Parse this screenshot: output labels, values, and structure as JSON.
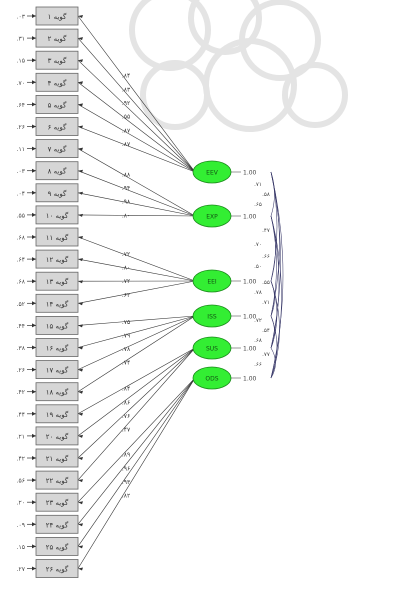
{
  "indicators": [
    {
      "label": "گویه ۱",
      "error": ".۰۳"
    },
    {
      "label": "گویه ۲",
      "error": ".۳۱"
    },
    {
      "label": "گویه ۳",
      "error": ".۱۵"
    },
    {
      "label": "گویه ۴",
      "error": ".۷۰"
    },
    {
      "label": "گویه ۵",
      "error": ".۶۴"
    },
    {
      "label": "گویه ۶",
      "error": ".۲۶"
    },
    {
      "label": "گویه ۷",
      "error": ".۱۱"
    },
    {
      "label": "گویه ۸",
      "error": ".۰۳"
    },
    {
      "label": "گویه ۹",
      "error": ".۰۴"
    },
    {
      "label": "گویه ۱۰",
      "error": ".۵۵"
    },
    {
      "label": "گویه ۱۱",
      "error": ".۶۸"
    },
    {
      "label": "گویه ۱۲",
      "error": ".۶۴"
    },
    {
      "label": "گویه ۱۳",
      "error": ".۶۸"
    },
    {
      "label": "گویه ۱۴",
      "error": ".۵۲"
    },
    {
      "label": "گویه ۱۵",
      "error": ".۴۴"
    },
    {
      "label": "گویه ۱۶",
      "error": ".۳۸"
    },
    {
      "label": "گویه ۱۷",
      "error": ".۲۶"
    },
    {
      "label": "گویه ۱۸",
      "error": ".۴۲"
    },
    {
      "label": "گویه ۱۹",
      "error": ".۴۴"
    },
    {
      "label": "گویه ۲۰",
      "error": ".۲۱"
    },
    {
      "label": "گویه ۲۱",
      "error": ".۴۲"
    },
    {
      "label": "گویه ۲۲",
      "error": ".۵۶"
    },
    {
      "label": "گویه ۲۳",
      "error": ".۲۰"
    },
    {
      "label": "گویه ۲۴",
      "error": ".۰۹"
    },
    {
      "label": "گویه ۲۵",
      "error": ".۱۵"
    },
    {
      "label": "گویه ۲۶",
      "error": ".۲۷"
    }
  ],
  "factors": [
    {
      "name": "EEV",
      "variance": "1.00",
      "items": [
        0,
        1,
        2,
        3,
        4,
        5
      ],
      "loadings": [
        ".۸۴",
        ".۸۳",
        ".۹۲",
        ".۵۵",
        ".۸۷",
        ".۸۷"
      ]
    },
    {
      "name": "EXP",
      "variance": "1.00",
      "items": [
        6,
        7,
        8,
        9
      ],
      "loadings": [
        ".۸۸",
        ".۹۴",
        ".۹۸",
        ".۸۰"
      ]
    },
    {
      "name": "EEI",
      "variance": "1.00",
      "items": [
        10,
        11,
        12,
        13
      ],
      "loadings": [
        ".۷۲",
        ".۸۰",
        ".۷۲",
        ".۶۲"
      ]
    },
    {
      "name": "ISS",
      "variance": "1.00",
      "items": [
        14,
        15,
        16,
        17
      ],
      "loadings": [
        ".۷۵",
        ".۷۹",
        ".۷۸",
        ".۷۴"
      ]
    },
    {
      "name": "SUS",
      "variance": "1.00",
      "items": [
        18,
        19,
        20,
        21
      ],
      "loadings": [
        ".۸۴",
        ".۸۶",
        ".۷۶",
        ".۴۷"
      ]
    },
    {
      "name": "ODS",
      "variance": "1.00",
      "items": [
        22,
        23,
        24,
        25
      ],
      "loadings": [
        ".۸۹",
        ".۹۶",
        ".۹۳",
        ".۸۲"
      ]
    }
  ],
  "covariance_labels": [
    ".۷۱",
    ".۵۸",
    ".۶۵",
    ".۴۷",
    ".۷۰",
    ".۶۶",
    ".۵۰",
    ".۵۵",
    ".۷۸",
    ".۷۱",
    ".۷۲",
    ".۵۴",
    ".۶۸",
    ".۷۷",
    ".۶۶"
  ],
  "colors": {
    "factor_fill": "#33ee33",
    "factor_stroke": "#1a8a1a",
    "box_fill": "#d6d6d6",
    "box_stroke": "#666666",
    "line": "#333333",
    "watermark": "#e4e4e4"
  }
}
